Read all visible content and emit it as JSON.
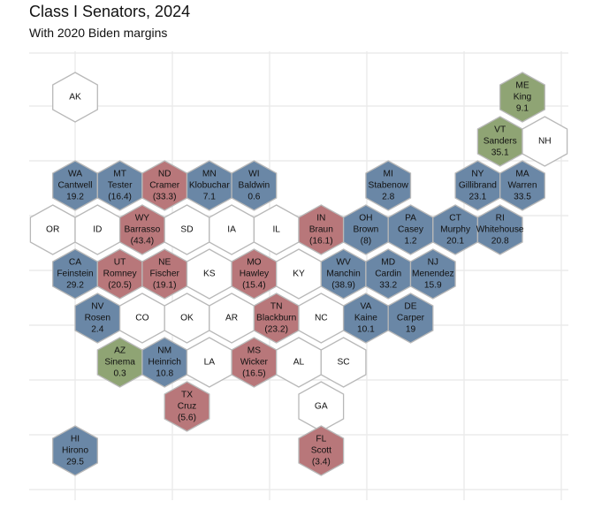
{
  "title": "Class I Senators, 2024",
  "subtitle": "With 2020 Biden margins",
  "colors": {
    "democrat": "#6a87a6",
    "republican": "#b8777a",
    "independent": "#8fa474",
    "none": "#ffffff",
    "hex_stroke": "#b8b8b8",
    "grid": "#ebebeb"
  },
  "states": [
    {
      "abbr": "AK",
      "col": 2,
      "row": 1,
      "party": "none"
    },
    {
      "abbr": "ME",
      "senator": "King",
      "margin": "9.1",
      "col": 22,
      "row": 1,
      "party": "independent"
    },
    {
      "abbr": "VT",
      "senator": "Sanders",
      "margin": "35.1",
      "col": 21,
      "row": 2,
      "party": "independent"
    },
    {
      "abbr": "NH",
      "col": 23,
      "row": 2,
      "party": "none"
    },
    {
      "abbr": "WA",
      "senator": "Cantwell",
      "margin": "19.2",
      "col": 2,
      "row": 3,
      "party": "democrat"
    },
    {
      "abbr": "MT",
      "senator": "Tester",
      "margin": "(16.4)",
      "col": 4,
      "row": 3,
      "party": "democrat"
    },
    {
      "abbr": "ND",
      "senator": "Cramer",
      "margin": "(33.3)",
      "col": 6,
      "row": 3,
      "party": "republican"
    },
    {
      "abbr": "MN",
      "senator": "Klobuchar",
      "margin": "7.1",
      "col": 8,
      "row": 3,
      "party": "democrat"
    },
    {
      "abbr": "WI",
      "senator": "Baldwin",
      "margin": "0.6",
      "col": 10,
      "row": 3,
      "party": "democrat"
    },
    {
      "abbr": "MI",
      "senator": "Stabenow",
      "margin": "2.8",
      "col": 16,
      "row": 3,
      "party": "democrat"
    },
    {
      "abbr": "NY",
      "senator": "Gillibrand",
      "margin": "23.1",
      "col": 20,
      "row": 3,
      "party": "democrat"
    },
    {
      "abbr": "MA",
      "senator": "Warren",
      "margin": "33.5",
      "col": 22,
      "row": 3,
      "party": "democrat"
    },
    {
      "abbr": "OR",
      "col": 1,
      "row": 4,
      "party": "none"
    },
    {
      "abbr": "ID",
      "col": 3,
      "row": 4,
      "party": "none"
    },
    {
      "abbr": "WY",
      "senator": "Barrasso",
      "margin": "(43.4)",
      "col": 5,
      "row": 4,
      "party": "republican"
    },
    {
      "abbr": "SD",
      "col": 7,
      "row": 4,
      "party": "none"
    },
    {
      "abbr": "IA",
      "col": 9,
      "row": 4,
      "party": "none"
    },
    {
      "abbr": "IL",
      "col": 11,
      "row": 4,
      "party": "none"
    },
    {
      "abbr": "IN",
      "senator": "Braun",
      "margin": "(16.1)",
      "col": 13,
      "row": 4,
      "party": "republican"
    },
    {
      "abbr": "OH",
      "senator": "Brown",
      "margin": "(8)",
      "col": 15,
      "row": 4,
      "party": "democrat"
    },
    {
      "abbr": "PA",
      "senator": "Casey",
      "margin": "1.2",
      "col": 17,
      "row": 4,
      "party": "democrat"
    },
    {
      "abbr": "CT",
      "senator": "Murphy",
      "margin": "20.1",
      "col": 19,
      "row": 4,
      "party": "democrat"
    },
    {
      "abbr": "RI",
      "senator": "Whitehouse",
      "margin": "20.8",
      "col": 21,
      "row": 4,
      "party": "democrat"
    },
    {
      "abbr": "CA",
      "senator": "Feinstein",
      "margin": "29.2",
      "col": 2,
      "row": 5,
      "party": "democrat"
    },
    {
      "abbr": "UT",
      "senator": "Romney",
      "margin": "(20.5)",
      "col": 4,
      "row": 5,
      "party": "republican"
    },
    {
      "abbr": "NE",
      "senator": "Fischer",
      "margin": "(19.1)",
      "col": 6,
      "row": 5,
      "party": "republican"
    },
    {
      "abbr": "KS",
      "col": 8,
      "row": 5,
      "party": "none"
    },
    {
      "abbr": "MO",
      "senator": "Hawley",
      "margin": "(15.4)",
      "col": 10,
      "row": 5,
      "party": "republican"
    },
    {
      "abbr": "KY",
      "col": 12,
      "row": 5,
      "party": "none"
    },
    {
      "abbr": "WV",
      "senator": "Manchin",
      "margin": "(38.9)",
      "col": 14,
      "row": 5,
      "party": "democrat"
    },
    {
      "abbr": "MD",
      "senator": "Cardin",
      "margin": "33.2",
      "col": 16,
      "row": 5,
      "party": "democrat"
    },
    {
      "abbr": "NJ",
      "senator": "Menendez",
      "margin": "15.9",
      "col": 18,
      "row": 5,
      "party": "democrat"
    },
    {
      "abbr": "NV",
      "senator": "Rosen",
      "margin": "2.4",
      "col": 3,
      "row": 6,
      "party": "democrat"
    },
    {
      "abbr": "CO",
      "col": 5,
      "row": 6,
      "party": "none"
    },
    {
      "abbr": "OK",
      "col": 7,
      "row": 6,
      "party": "none"
    },
    {
      "abbr": "AR",
      "col": 9,
      "row": 6,
      "party": "none"
    },
    {
      "abbr": "TN",
      "senator": "Blackburn",
      "margin": "(23.2)",
      "col": 11,
      "row": 6,
      "party": "republican"
    },
    {
      "abbr": "NC",
      "col": 13,
      "row": 6,
      "party": "none"
    },
    {
      "abbr": "VA",
      "senator": "Kaine",
      "margin": "10.1",
      "col": 15,
      "row": 6,
      "party": "democrat"
    },
    {
      "abbr": "DE",
      "senator": "Carper",
      "margin": "19",
      "col": 17,
      "row": 6,
      "party": "democrat"
    },
    {
      "abbr": "AZ",
      "senator": "Sinema",
      "margin": "0.3",
      "col": 4,
      "row": 7,
      "party": "independent"
    },
    {
      "abbr": "NM",
      "senator": "Heinrich",
      "margin": "10.8",
      "col": 6,
      "row": 7,
      "party": "democrat"
    },
    {
      "abbr": "LA",
      "col": 8,
      "row": 7,
      "party": "none"
    },
    {
      "abbr": "MS",
      "senator": "Wicker",
      "margin": "(16.5)",
      "col": 10,
      "row": 7,
      "party": "republican"
    },
    {
      "abbr": "AL",
      "col": 12,
      "row": 7,
      "party": "none"
    },
    {
      "abbr": "SC",
      "col": 14,
      "row": 7,
      "party": "none"
    },
    {
      "abbr": "TX",
      "senator": "Cruz",
      "margin": "(5.6)",
      "col": 7,
      "row": 8,
      "party": "republican"
    },
    {
      "abbr": "GA",
      "col": 13,
      "row": 8,
      "party": "none"
    },
    {
      "abbr": "HI",
      "senator": "Hirono",
      "margin": "29.5",
      "col": 2,
      "row": 9,
      "party": "democrat"
    },
    {
      "abbr": "FL",
      "senator": "Scott",
      "margin": "(3.4)",
      "col": 13,
      "row": 9,
      "party": "republican"
    }
  ]
}
